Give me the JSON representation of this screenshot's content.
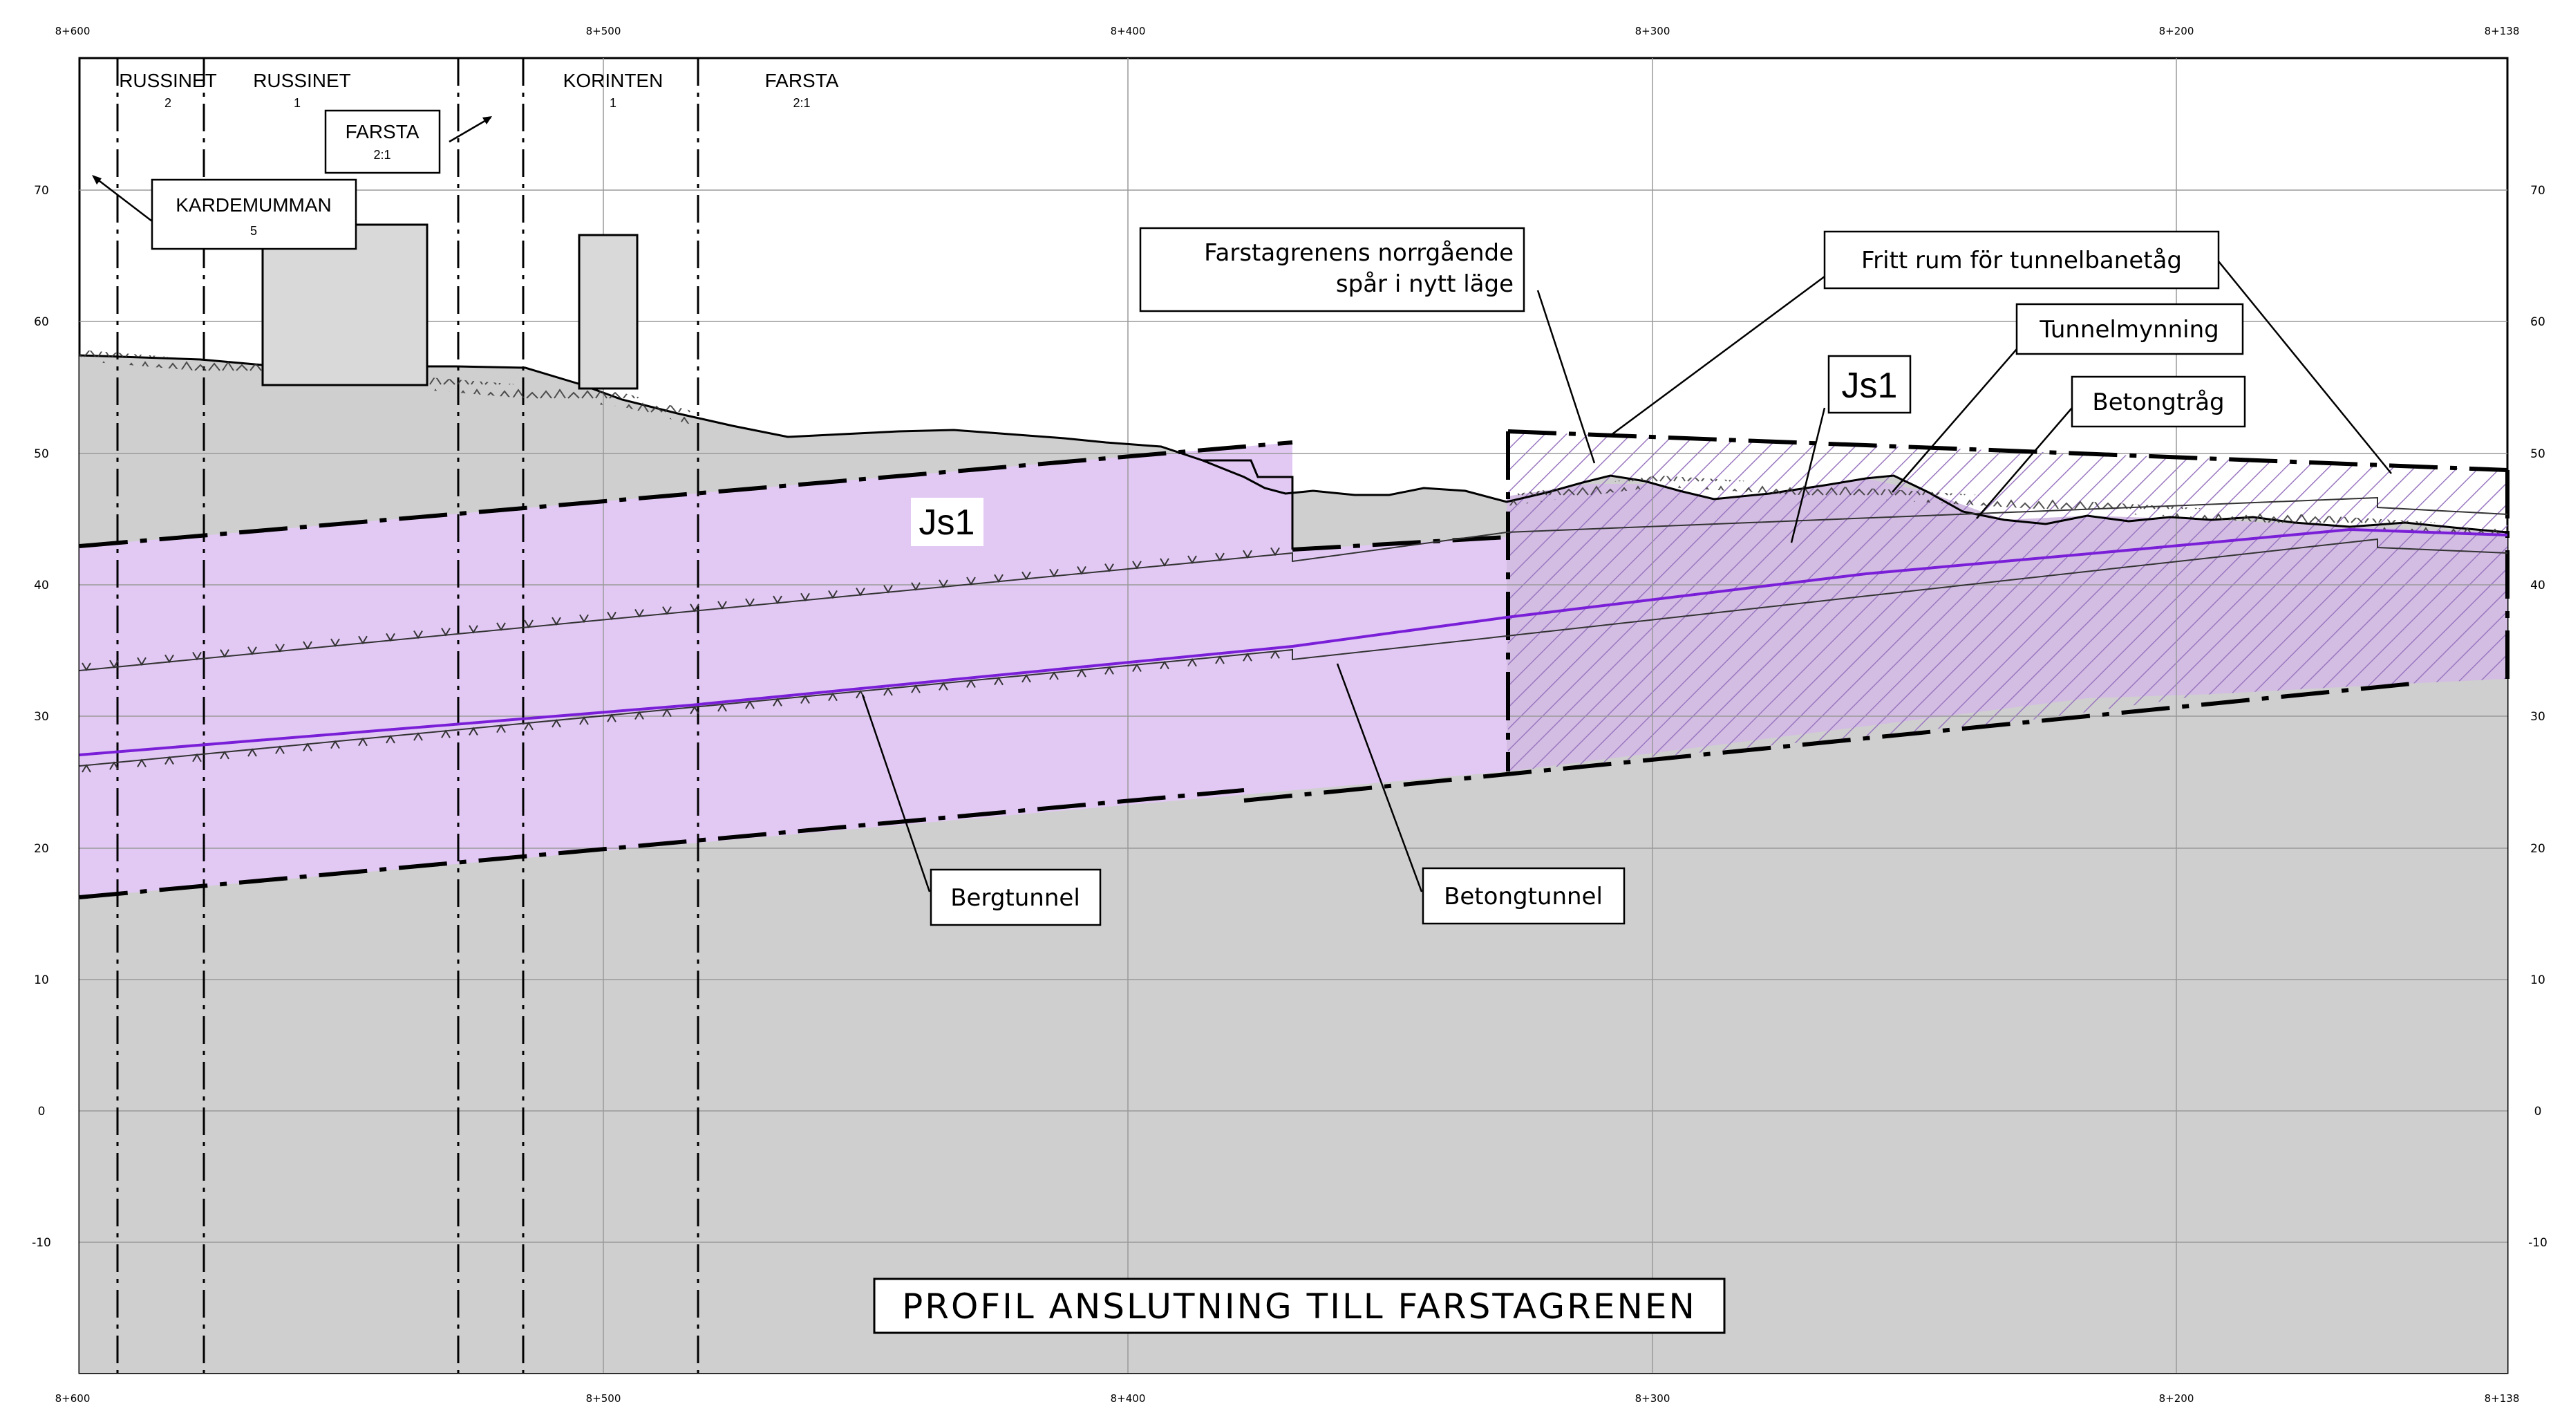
{
  "chainage": {
    "top": [
      "8+600",
      "8+500",
      "8+400",
      "8+300",
      "8+200",
      "8+138"
    ],
    "bottom": [
      "8+600",
      "8+500",
      "8+400",
      "8+300",
      "8+200",
      "8+138"
    ]
  },
  "elevation": {
    "left": [
      "70",
      "60",
      "50",
      "40",
      "30",
      "20",
      "10",
      "0",
      "-10"
    ],
    "right": [
      "70",
      "60",
      "50",
      "40",
      "30",
      "20",
      "10",
      "0",
      "-10"
    ]
  },
  "properties": [
    {
      "name": "RUSSINET",
      "number": "2"
    },
    {
      "name": "RUSSINET",
      "number": "1"
    },
    {
      "name": "FARSTA",
      "number": "2:1"
    },
    {
      "name": "KARDEMUMMAN",
      "number": "5"
    },
    {
      "name": "KORINTEN",
      "number": "1"
    },
    {
      "name": "FARSTA",
      "number": "2:1"
    }
  ],
  "zones": {
    "left": "Js1",
    "right": "Js1"
  },
  "callouts": {
    "farstagrenen_line1": "Farstagrenens norrgående",
    "farstagrenen_line2": "spår i nytt läge",
    "fritt_rum": "Fritt rum för tunnelbanetåg",
    "tunnelmynning": "Tunnelmynning",
    "betongtrag": "Betongtråg",
    "bergtunnel": "Bergtunnel",
    "betongtunnel": "Betongtunnel"
  },
  "title": "PROFIL ANSLUTNING TILL FARSTAGRENEN",
  "colors": {
    "ground": "#cfcfcf",
    "js1_zone": "#e2c9f4",
    "hatch": "#9a77c0",
    "track": "#7a1fd8",
    "grid": "#9a9a9a"
  }
}
